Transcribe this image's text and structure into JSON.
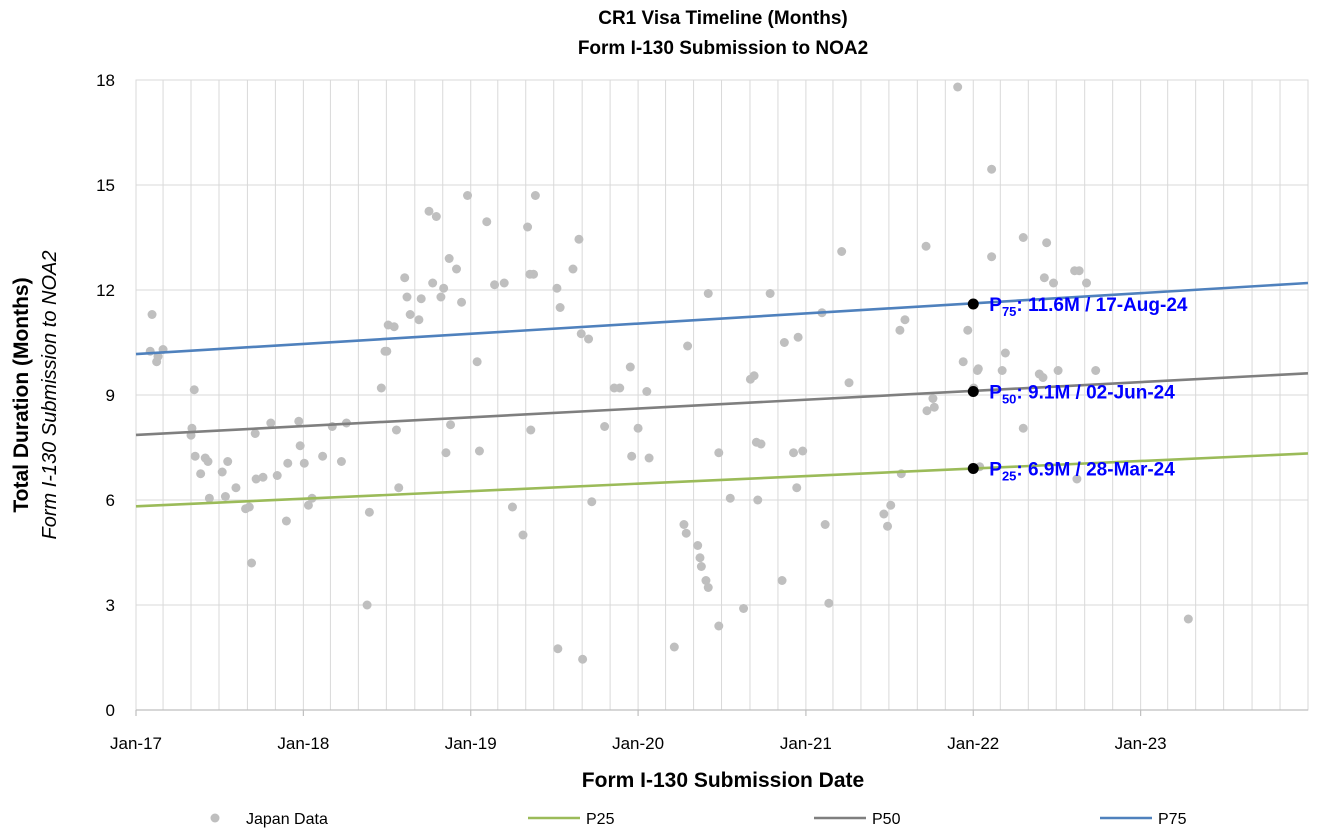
{
  "chart_data": {
    "type": "scatter",
    "title": [
      "CR1 Visa Timeline (Months)",
      "Form I-130 Submission to NOA2"
    ],
    "xlabel": "Form I-130 Submission Date",
    "ylabel": "Total Duration (Months)",
    "ylabel_sub": "Form I-130 Submission to NOA2",
    "x_axis": {
      "type": "date",
      "range": [
        "2017-01-01",
        "2024-01-01"
      ],
      "tick_labels": [
        "Jan-17",
        "Jan-18",
        "Jan-19",
        "Jan-20",
        "Jan-21",
        "Jan-22",
        "Jan-23"
      ],
      "tick_dates": [
        "2017-01-01",
        "2018-01-01",
        "2019-01-01",
        "2020-01-01",
        "2021-01-01",
        "2022-01-01",
        "2023-01-01"
      ],
      "grid": "monthly-2"
    },
    "y_axis": {
      "range": [
        0,
        18
      ],
      "ticks": [
        0,
        3,
        6,
        9,
        12,
        15,
        18
      ],
      "grid": true
    },
    "legend": {
      "position": "bottom",
      "items": [
        {
          "name": "Japan Data",
          "kind": "marker",
          "color": "#bfbfbf"
        },
        {
          "name": "P25",
          "kind": "line",
          "color": "#9bbb59"
        },
        {
          "name": "P50",
          "kind": "line",
          "color": "#7f7f7f"
        },
        {
          "name": "P75",
          "kind": "line",
          "color": "#4f81bd"
        }
      ]
    },
    "trend_lines": [
      {
        "name": "P25",
        "color": "#9bbb59",
        "start": [
          "2017-01-01",
          5.82
        ],
        "end": [
          "2024-01-01",
          7.33
        ]
      },
      {
        "name": "P50",
        "color": "#7f7f7f",
        "start": [
          "2017-01-01",
          7.86
        ],
        "end": [
          "2024-01-01",
          9.62
        ]
      },
      {
        "name": "P75",
        "color": "#4f81bd",
        "start": [
          "2017-01-01",
          10.17
        ],
        "end": [
          "2024-01-01",
          12.2
        ]
      }
    ],
    "annotations": [
      {
        "sym": "P",
        "sub": "75",
        "text": ": 11.6M / 17-Aug-24",
        "date": "2022-01-01",
        "y": 11.6
      },
      {
        "sym": "P",
        "sub": "50",
        "text": ": 9.1M / 02-Jun-24",
        "date": "2022-01-01",
        "y": 9.1
      },
      {
        "sym": "P",
        "sub": "25",
        "text": ": 6.9M / 28-Mar-24",
        "date": "2022-01-01",
        "y": 6.9
      }
    ],
    "series": [
      {
        "name": "Japan Data",
        "color": "#bfbfbf",
        "points": [
          [
            "2017-02-01",
            10.25
          ],
          [
            "2017-02-05",
            11.3
          ],
          [
            "2017-02-15",
            9.95
          ],
          [
            "2017-02-18",
            10.1
          ],
          [
            "2017-03-01",
            10.3
          ],
          [
            "2017-05-01",
            7.85
          ],
          [
            "2017-05-03",
            8.05
          ],
          [
            "2017-05-08",
            9.15
          ],
          [
            "2017-05-10",
            7.25
          ],
          [
            "2017-05-22",
            6.75
          ],
          [
            "2017-06-01",
            7.2
          ],
          [
            "2017-06-07",
            7.1
          ],
          [
            "2017-06-10",
            6.05
          ],
          [
            "2017-07-08",
            6.8
          ],
          [
            "2017-07-15",
            6.1
          ],
          [
            "2017-07-20",
            7.1
          ],
          [
            "2017-08-07",
            6.35
          ],
          [
            "2017-08-28",
            5.75
          ],
          [
            "2017-09-05",
            5.8
          ],
          [
            "2017-09-10",
            4.2
          ],
          [
            "2017-09-18",
            7.9
          ],
          [
            "2017-09-20",
            6.6
          ],
          [
            "2017-10-05",
            6.65
          ],
          [
            "2017-10-22",
            8.2
          ],
          [
            "2017-11-05",
            6.7
          ],
          [
            "2017-11-25",
            5.4
          ],
          [
            "2017-11-28",
            7.05
          ],
          [
            "2017-12-22",
            8.25
          ],
          [
            "2017-12-25",
            7.55
          ],
          [
            "2018-01-03",
            7.05
          ],
          [
            "2018-01-12",
            5.85
          ],
          [
            "2018-01-20",
            6.05
          ],
          [
            "2018-02-12",
            7.25
          ],
          [
            "2018-03-05",
            8.1
          ],
          [
            "2018-03-25",
            7.1
          ],
          [
            "2018-04-05",
            8.2
          ],
          [
            "2018-05-20",
            3.0
          ],
          [
            "2018-05-25",
            5.65
          ],
          [
            "2018-06-20",
            9.2
          ],
          [
            "2018-06-28",
            10.25
          ],
          [
            "2018-07-02",
            10.25
          ],
          [
            "2018-07-05",
            11.0
          ],
          [
            "2018-07-18",
            10.95
          ],
          [
            "2018-07-23",
            8.0
          ],
          [
            "2018-07-28",
            6.35
          ],
          [
            "2018-08-10",
            12.35
          ],
          [
            "2018-08-15",
            11.8
          ],
          [
            "2018-08-22",
            11.3
          ],
          [
            "2018-09-10",
            11.15
          ],
          [
            "2018-09-15",
            11.75
          ],
          [
            "2018-10-02",
            14.25
          ],
          [
            "2018-10-10",
            12.2
          ],
          [
            "2018-10-18",
            14.1
          ],
          [
            "2018-10-28",
            11.8
          ],
          [
            "2018-11-03",
            12.05
          ],
          [
            "2018-11-08",
            7.35
          ],
          [
            "2018-11-15",
            12.9
          ],
          [
            "2018-11-18",
            8.15
          ],
          [
            "2018-12-01",
            12.6
          ],
          [
            "2018-12-12",
            11.65
          ],
          [
            "2018-12-25",
            14.7
          ],
          [
            "2019-01-15",
            9.95
          ],
          [
            "2019-01-20",
            7.4
          ],
          [
            "2019-02-05",
            13.95
          ],
          [
            "2019-02-22",
            12.15
          ],
          [
            "2019-03-15",
            12.2
          ],
          [
            "2019-04-02",
            5.8
          ],
          [
            "2019-04-25",
            5.0
          ],
          [
            "2019-05-05",
            13.8
          ],
          [
            "2019-05-10",
            12.45
          ],
          [
            "2019-05-12",
            8.0
          ],
          [
            "2019-05-18",
            12.45
          ],
          [
            "2019-05-22",
            14.7
          ],
          [
            "2019-07-08",
            12.05
          ],
          [
            "2019-07-15",
            11.5
          ],
          [
            "2019-07-10",
            1.75
          ],
          [
            "2019-08-12",
            12.6
          ],
          [
            "2019-08-25",
            13.45
          ],
          [
            "2019-08-30",
            10.75
          ],
          [
            "2019-09-02",
            1.45
          ],
          [
            "2019-09-15",
            10.6
          ],
          [
            "2019-09-22",
            5.95
          ],
          [
            "2019-10-20",
            8.1
          ],
          [
            "2019-11-10",
            9.2
          ],
          [
            "2019-11-22",
            9.2
          ],
          [
            "2019-12-15",
            9.8
          ],
          [
            "2019-12-18",
            7.25
          ],
          [
            "2020-01-01",
            8.05
          ],
          [
            "2020-01-20",
            9.1
          ],
          [
            "2020-01-25",
            7.2
          ],
          [
            "2020-03-20",
            1.8
          ],
          [
            "2020-04-10",
            5.3
          ],
          [
            "2020-04-15",
            5.05
          ],
          [
            "2020-04-18",
            10.4
          ],
          [
            "2020-05-10",
            4.7
          ],
          [
            "2020-05-15",
            4.35
          ],
          [
            "2020-05-18",
            4.1
          ],
          [
            "2020-05-28",
            3.7
          ],
          [
            "2020-06-02",
            3.5
          ],
          [
            "2020-06-02",
            11.9
          ],
          [
            "2020-06-25",
            7.35
          ],
          [
            "2020-06-25",
            2.4
          ],
          [
            "2020-07-20",
            6.05
          ],
          [
            "2020-08-18",
            2.9
          ],
          [
            "2020-09-02",
            9.45
          ],
          [
            "2020-09-10",
            9.55
          ],
          [
            "2020-09-15",
            7.65
          ],
          [
            "2020-09-18",
            6.0
          ],
          [
            "2020-09-25",
            7.6
          ],
          [
            "2020-10-15",
            11.9
          ],
          [
            "2020-11-10",
            3.7
          ],
          [
            "2020-11-15",
            10.5
          ],
          [
            "2020-12-05",
            7.35
          ],
          [
            "2020-12-12",
            6.35
          ],
          [
            "2020-12-15",
            10.65
          ],
          [
            "2020-12-25",
            7.4
          ],
          [
            "2021-02-05",
            11.35
          ],
          [
            "2021-02-12",
            5.3
          ],
          [
            "2021-02-20",
            3.05
          ],
          [
            "2021-03-20",
            13.1
          ],
          [
            "2021-04-05",
            9.35
          ],
          [
            "2021-06-20",
            5.6
          ],
          [
            "2021-06-28",
            5.25
          ],
          [
            "2021-07-05",
            5.85
          ],
          [
            "2021-07-25",
            10.85
          ],
          [
            "2021-07-28",
            6.75
          ],
          [
            "2021-08-05",
            11.15
          ],
          [
            "2021-09-20",
            13.25
          ],
          [
            "2021-09-22",
            8.55
          ],
          [
            "2021-10-05",
            8.9
          ],
          [
            "2021-10-08",
            8.65
          ],
          [
            "2021-11-28",
            17.8
          ],
          [
            "2021-12-10",
            9.95
          ],
          [
            "2021-12-20",
            10.85
          ],
          [
            "2022-01-02",
            9.2
          ],
          [
            "2022-01-10",
            9.7
          ],
          [
            "2022-01-12",
            9.75
          ],
          [
            "2022-01-15",
            6.95
          ],
          [
            "2022-02-10",
            15.45
          ],
          [
            "2022-02-10",
            12.95
          ],
          [
            "2022-03-05",
            9.7
          ],
          [
            "2022-03-12",
            10.2
          ],
          [
            "2022-04-20",
            8.05
          ],
          [
            "2022-04-20",
            13.5
          ],
          [
            "2022-05-25",
            9.6
          ],
          [
            "2022-06-02",
            9.5
          ],
          [
            "2022-06-05",
            12.35
          ],
          [
            "2022-06-10",
            13.35
          ],
          [
            "2022-06-25",
            12.2
          ],
          [
            "2022-07-05",
            9.7
          ],
          [
            "2022-08-10",
            12.55
          ],
          [
            "2022-08-15",
            6.6
          ],
          [
            "2022-08-20",
            12.55
          ],
          [
            "2022-09-05",
            12.2
          ],
          [
            "2022-09-25",
            9.7
          ],
          [
            "2023-04-15",
            2.6
          ]
        ]
      }
    ]
  }
}
